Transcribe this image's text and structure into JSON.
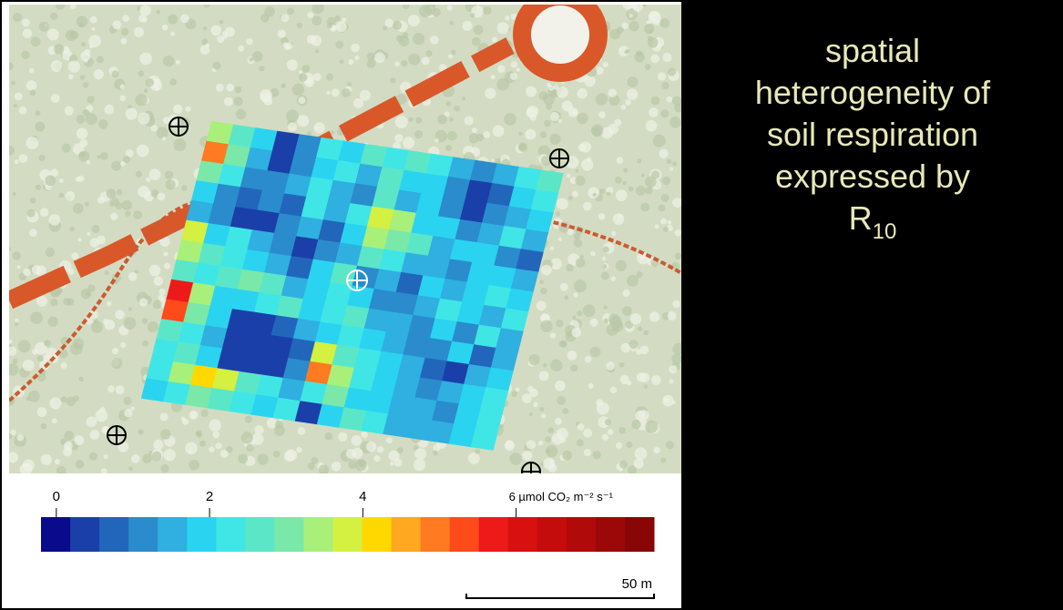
{
  "heading": {
    "lines": [
      "spatial",
      "heterogeneity of",
      "soil respiration",
      "expressed by"
    ],
    "symbol": "R",
    "subscript": "10"
  },
  "map": {
    "grid": [
      [
        3.5,
        2.5,
        1.8,
        0.5,
        1.2,
        2.2,
        1.8,
        2.6,
        2.4,
        2.8,
        2.2,
        1.5,
        1.0,
        1.5,
        2.4,
        2.6
      ],
      [
        5.0,
        3.0,
        1.5,
        0.2,
        1.0,
        2.0,
        2.2,
        1.6,
        2.5,
        1.8,
        2.0,
        1.2,
        0.3,
        0.8,
        1.8,
        2.2
      ],
      [
        3.2,
        2.4,
        1.2,
        1.0,
        1.5,
        2.2,
        1.4,
        1.2,
        2.6,
        1.5,
        1.8,
        1.0,
        0.5,
        1.2,
        1.5,
        2.0
      ],
      [
        2.0,
        1.2,
        0.8,
        1.0,
        0.9,
        2.1,
        1.5,
        2.4,
        3.8,
        3.5,
        2.0,
        1.8,
        1.2,
        1.5,
        2.2,
        1.6
      ],
      [
        1.5,
        1.0,
        0.5,
        0.5,
        1.2,
        1.5,
        0.8,
        1.8,
        3.5,
        3.0,
        2.5,
        1.6,
        1.8,
        2.0,
        1.2,
        0.8
      ],
      [
        3.8,
        1.8,
        2.2,
        1.5,
        1.0,
        0.5,
        1.2,
        1.5,
        2.6,
        2.2,
        1.6,
        1.5,
        1.2,
        1.8,
        2.0,
        1.5
      ],
      [
        3.6,
        2.8,
        2.4,
        2.0,
        1.6,
        0.6,
        1.8,
        2.5,
        1.2,
        1.5,
        0.6,
        1.8,
        1.5,
        2.0,
        2.4,
        1.8
      ],
      [
        2.6,
        2.2,
        2.8,
        3.2,
        2.5,
        1.5,
        1.8,
        2.4,
        2.0,
        1.0,
        1.2,
        1.6,
        2.2,
        1.8,
        1.5,
        2.2
      ],
      [
        5.8,
        3.5,
        2.0,
        1.8,
        2.2,
        2.6,
        2.0,
        2.2,
        2.5,
        1.6,
        1.4,
        1.0,
        1.8,
        1.2,
        2.4,
        1.6
      ],
      [
        5.2,
        3.2,
        1.8,
        0.5,
        0.4,
        0.6,
        1.5,
        2.0,
        2.4,
        1.8,
        1.5,
        1.2,
        1.0,
        2.0,
        0.8,
        1.5
      ],
      [
        2.8,
        2.2,
        1.5,
        0.3,
        0.2,
        0.3,
        0.8,
        3.8,
        2.8,
        2.2,
        1.8,
        1.5,
        0.9,
        0.5,
        1.5,
        2.0
      ],
      [
        2.4,
        2.6,
        1.8,
        0.4,
        0.3,
        0.5,
        1.2,
        4.8,
        3.5,
        2.4,
        2.0,
        1.4,
        1.2,
        1.5,
        1.8,
        2.2
      ],
      [
        2.2,
        3.6,
        4.2,
        3.8,
        2.5,
        2.2,
        1.5,
        2.4,
        3.2,
        2.0,
        1.8,
        1.6,
        1.5,
        1.2,
        1.8,
        2.4
      ],
      [
        2.0,
        2.4,
        3.2,
        2.6,
        2.2,
        2.0,
        2.2,
        0.5,
        1.8,
        2.6,
        2.2,
        1.6,
        1.4,
        1.6,
        2.0,
        2.2
      ]
    ],
    "colorbar": {
      "range": [
        -0.2,
        7.8
      ],
      "colors": [
        "#0a0a8c",
        "#1a3fa8",
        "#2266bb",
        "#2a8ccc",
        "#2fb0e0",
        "#2ad4f0",
        "#40e6e6",
        "#5ce6c8",
        "#7ae8a8",
        "#a8f07a",
        "#d4f040",
        "#ffd800",
        "#ffa820",
        "#ff7a20",
        "#ff4a1a",
        "#ee1a1a",
        "#d81010",
        "#c40c0c",
        "#b00a0a",
        "#9c0808",
        "#880606"
      ],
      "ticks": [
        0,
        2,
        4,
        {
          "value": 6,
          "label": "6 µmol CO₂ m⁻² s⁻¹"
        }
      ]
    },
    "scale_bar": "50 m"
  }
}
